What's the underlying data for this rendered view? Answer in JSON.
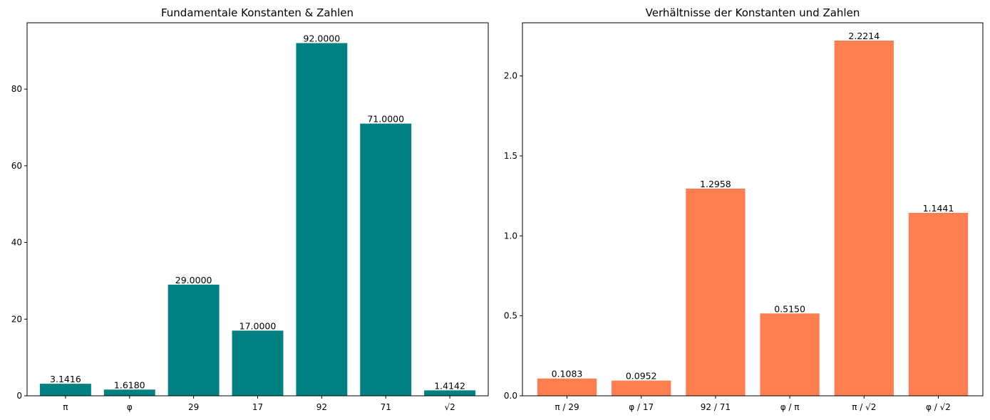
{
  "chart_data": [
    {
      "type": "bar",
      "title": "Fundamentale Konstanten & Zahlen",
      "xlabel": "",
      "ylabel": "",
      "categories": [
        "π",
        "φ",
        "29",
        "17",
        "92",
        "71",
        "√2"
      ],
      "values": [
        3.1416,
        1.618,
        29,
        17,
        92,
        71,
        1.4142
      ],
      "value_labels": [
        "3.1416",
        "1.6180",
        "29.0000",
        "17.0000",
        "92.0000",
        "71.0000",
        "1.4142"
      ],
      "ylim": [
        0,
        97.3
      ],
      "yticks": [
        0,
        20,
        40,
        60,
        80
      ],
      "ytick_labels": [
        "0",
        "20",
        "40",
        "60",
        "80"
      ],
      "color": "#008080",
      "grid": false,
      "legend": "none"
    },
    {
      "type": "bar",
      "title": "Verhältnisse der Konstanten und Zahlen",
      "xlabel": "",
      "ylabel": "",
      "categories": [
        "π / 29",
        "φ / 17",
        "92 / 71",
        "φ / π",
        "π / √2",
        "φ / √2"
      ],
      "values": [
        0.1083,
        0.0952,
        1.2958,
        0.515,
        2.2214,
        1.1441
      ],
      "value_labels": [
        "0.1083",
        "0.0952",
        "1.2958",
        "0.5150",
        "2.2214",
        "1.1441"
      ],
      "ylim": [
        0,
        2.3325
      ],
      "yticks": [
        0,
        0.5,
        1,
        1.5,
        2
      ],
      "ytick_labels": [
        "0.0",
        "0.5",
        "1.0",
        "1.5",
        "2.0"
      ],
      "color": "#FF7F50",
      "grid": false,
      "legend": "none"
    }
  ]
}
